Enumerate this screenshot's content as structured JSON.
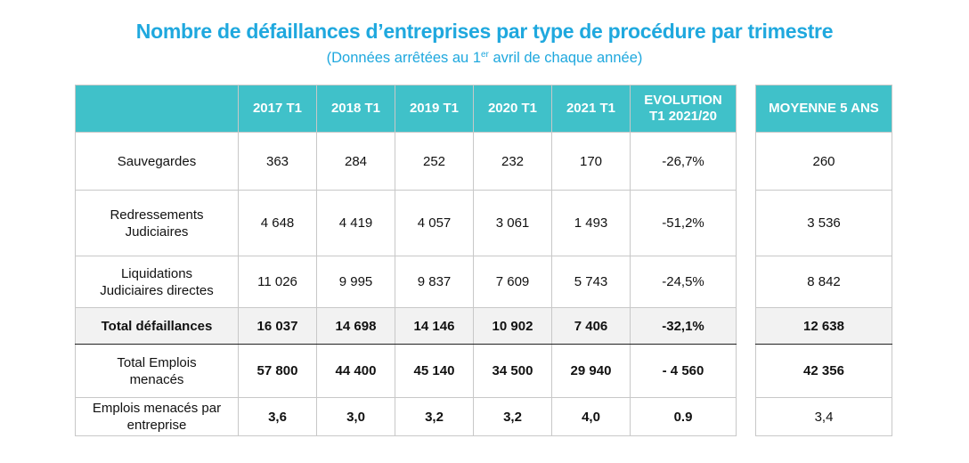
{
  "title": "Nombre de défaillances d’entreprises par type de procédure par trimestre",
  "subtitle": {
    "before": "(Données arrêtées au 1",
    "sup": "er",
    "after": " avril de chaque année)"
  },
  "table": {
    "columns": [
      "",
      "2017 T1",
      "2018 T1",
      "2019 T1",
      "2020 T1",
      "2021 T1"
    ],
    "evolution_header": {
      "line1": "EVOLUTION",
      "line2": "T1 2021/20"
    },
    "average_header": "MOYENNE 5 ANS",
    "rows": [
      {
        "label_lines": [
          "Sauvegardes"
        ],
        "values": [
          "363",
          "284",
          "252",
          "232",
          "170"
        ],
        "evolution": "-26,7%",
        "average": "260"
      },
      {
        "label_lines": [
          "Redressements",
          "Judiciaires"
        ],
        "values": [
          "4 648",
          "4 419",
          "4 057",
          "3 061",
          "1 493"
        ],
        "evolution": "-51,2%",
        "average": "3 536"
      },
      {
        "label_lines": [
          "Liquidations",
          "Judiciaires directes"
        ],
        "values": [
          "11 026",
          "9 995",
          "9 837",
          "7 609",
          "5 743"
        ],
        "evolution": "-24,5%",
        "average": "8 842"
      },
      {
        "label_lines": [
          "Total défaillances"
        ],
        "values": [
          "16 037",
          "14 698",
          "14 146",
          "10 902",
          "7 406"
        ],
        "evolution": "-32,1%",
        "average": "12 638"
      },
      {
        "label_lines": [
          "Total Emplois",
          "menacés"
        ],
        "values": [
          "57 800",
          "44 400",
          "45 140",
          "34 500",
          "29 940"
        ],
        "evolution": "- 4 560",
        "average": "42 356"
      },
      {
        "label_lines": [
          "Emplois menacés par",
          "entreprise"
        ],
        "values": [
          "3,6",
          "3,0",
          "3,2",
          "3,2",
          "4,0"
        ],
        "evolution": "0.9",
        "average": "3,4"
      }
    ]
  }
}
